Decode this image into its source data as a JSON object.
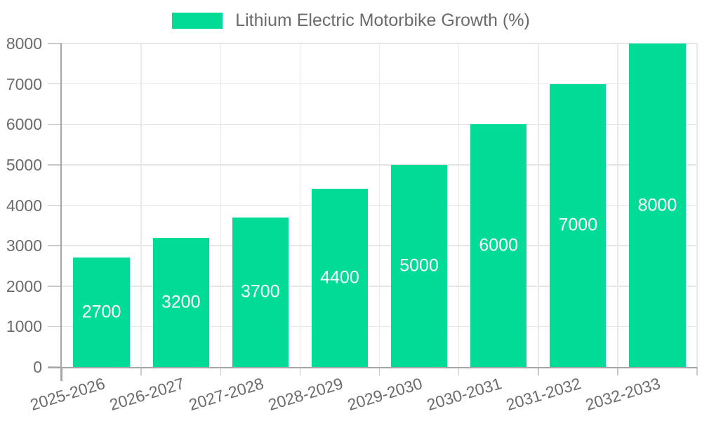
{
  "chart_data": {
    "type": "bar",
    "title": "Lithium Electric Motorbike Growth (%)",
    "categories": [
      "2025-2026",
      "2026-2027",
      "2027-2028",
      "2028-2029",
      "2029-2030",
      "2030-2031",
      "2031-2032",
      "2032-2033"
    ],
    "values": [
      2700,
      3200,
      3700,
      4400,
      5000,
      6000,
      7000,
      8000
    ],
    "xlabel": "",
    "ylabel": "",
    "ylim": [
      0,
      8000
    ],
    "ytick_step": 1000,
    "grid": true,
    "legend_position": "top-center",
    "bar_labels_inside": true,
    "colors": {
      "bar": "#00DB95",
      "bar_label": "#FFFFFF",
      "axis_text": "#6B6B6B",
      "axis_line": "#A6A6A6",
      "gridline": "#E6E6E6",
      "gridline_vertical": "#E9E9E9",
      "tick": "#C9C9C9",
      "background": "#FFFFFF"
    }
  }
}
